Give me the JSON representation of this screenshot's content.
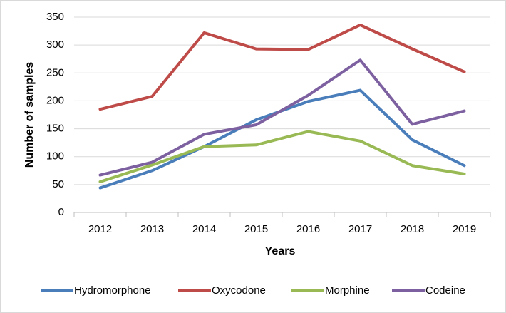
{
  "chart_data": {
    "type": "line",
    "x_label": "Years",
    "y_label": "Number of samples",
    "categories": [
      "2012",
      "2013",
      "2014",
      "2015",
      "2016",
      "2017",
      "2018",
      "2019"
    ],
    "series": [
      {
        "name": "Hydromorphone",
        "color": "#4a7ebb",
        "values": [
          44,
          75,
          118,
          166,
          199,
          219,
          130,
          84
        ]
      },
      {
        "name": "Oxycodone",
        "color": "#be4b48",
        "values": [
          185,
          208,
          322,
          293,
          292,
          336,
          293,
          252
        ]
      },
      {
        "name": "Morphine",
        "color": "#98b954",
        "values": [
          55,
          85,
          118,
          121,
          145,
          128,
          84,
          69
        ]
      },
      {
        "name": "Codeine",
        "color": "#7d60a0",
        "values": [
          67,
          90,
          140,
          157,
          210,
          273,
          158,
          182
        ]
      }
    ],
    "ylim": [
      0,
      350
    ],
    "yticks": [
      0,
      50,
      100,
      150,
      200,
      250,
      300,
      350
    ],
    "grid": true,
    "legend": "bottom"
  }
}
